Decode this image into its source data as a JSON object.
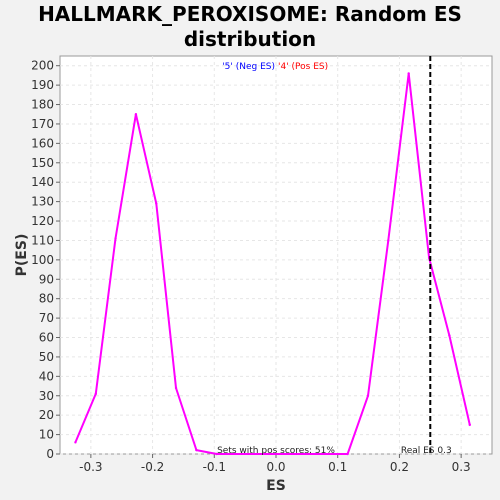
{
  "chart_data": {
    "type": "line",
    "title_line1": "HALLMARK_PEROXISOME: Random ES",
    "title_line2": "distribution",
    "xlabel": "ES",
    "ylabel": "P(ES)",
    "xlim": [
      -0.35,
      0.35
    ],
    "ylim": [
      0,
      205
    ],
    "x_ticks": [
      -0.3,
      -0.2,
      -0.1,
      0.0,
      0.1,
      0.2,
      0.3
    ],
    "x_tick_labels": [
      "-0.3",
      "-0.2",
      "-0.1",
      "0.0",
      "0.1",
      "0.2",
      "0.3"
    ],
    "y_ticks": [
      0,
      10,
      20,
      30,
      40,
      50,
      60,
      70,
      80,
      90,
      100,
      110,
      120,
      130,
      140,
      150,
      160,
      170,
      180,
      190,
      200
    ],
    "grid": true,
    "legend": {
      "placement": "top-center",
      "neg_label": "'5' (Neg ES)",
      "neg_color": "#0000ff",
      "pos_label": "'4' (Pos ES)",
      "pos_color": "#ff0000"
    },
    "series": [
      {
        "color": "#ff00ff",
        "x": [
          -0.325,
          -0.292,
          -0.26,
          -0.227,
          -0.194,
          -0.162,
          -0.129,
          -0.096,
          0.116,
          0.149,
          0.182,
          0.215,
          0.248,
          0.281,
          0.314
        ],
        "y": [
          6,
          31,
          111,
          175,
          129,
          34,
          2,
          0,
          0,
          30,
          110,
          196,
          101,
          61,
          15
        ]
      }
    ],
    "real_es": {
      "value": 0.25,
      "label": "Real ES 0.3",
      "line_color": "#000000"
    },
    "note": "Sets with pos scores: 51%"
  }
}
